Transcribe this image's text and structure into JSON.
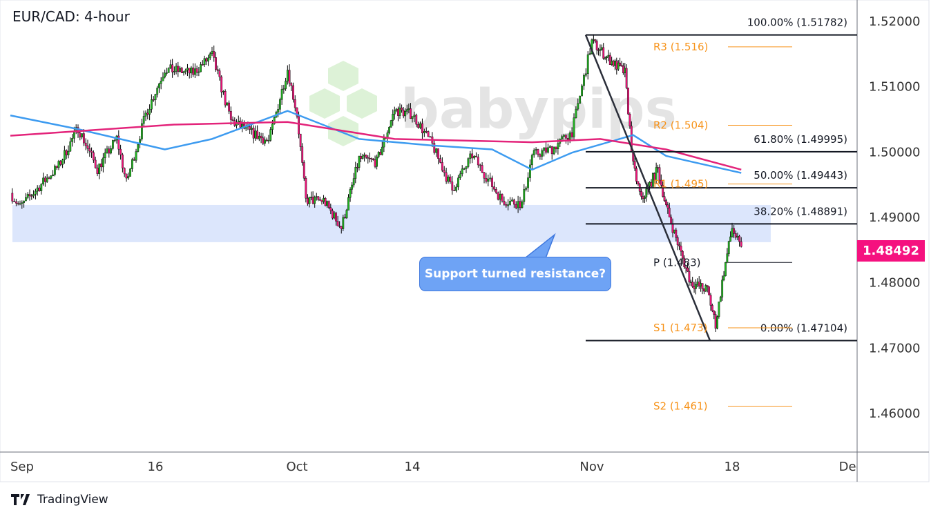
{
  "chart_data": {
    "type": "candlestick",
    "title": "EUR/CAD: 4-hour",
    "ylim": [
      1.455,
      1.522
    ],
    "y_ticks": [
      "1.52000",
      "1.51000",
      "1.50000",
      "1.49000",
      "1.48000",
      "1.47000",
      "1.46000"
    ],
    "x_ticks": [
      "Sep",
      "16",
      "Oct",
      "14",
      "Nov",
      "18",
      "Dec"
    ],
    "last_price": "1.48492",
    "price_path": [
      [
        "2024-09-01",
        1.4936
      ],
      [
        "2024-09-02",
        1.4915
      ],
      [
        "2024-09-06",
        1.4978
      ],
      [
        "2024-09-08",
        1.5036
      ],
      [
        "2024-09-10",
        1.4973
      ],
      [
        "2024-09-12",
        1.502
      ],
      [
        "2024-09-13",
        1.4952
      ],
      [
        "2024-09-15",
        1.5057
      ],
      [
        "2024-09-17",
        1.5126
      ],
      [
        "2024-09-20",
        1.512
      ],
      [
        "2024-09-22",
        1.5147
      ],
      [
        "2024-09-24",
        1.5047
      ],
      [
        "2024-09-26",
        1.503
      ],
      [
        "2024-09-28",
        1.5015
      ],
      [
        "2024-09-30",
        1.5126
      ],
      [
        "2024-10-01",
        1.5057
      ],
      [
        "2024-10-02",
        1.4925
      ],
      [
        "2024-10-04",
        1.4925
      ],
      [
        "2024-10-06",
        1.4883
      ],
      [
        "2024-10-08",
        1.4989
      ],
      [
        "2024-10-10",
        1.4984
      ],
      [
        "2024-10-12",
        1.5063
      ],
      [
        "2024-10-14",
        1.5057
      ],
      [
        "2024-10-16",
        1.501
      ],
      [
        "2024-10-18",
        1.4941
      ],
      [
        "2024-10-20",
        1.4994
      ],
      [
        "2024-10-23",
        1.4925
      ],
      [
        "2024-10-25",
        1.492
      ],
      [
        "2024-10-26",
        1.4994
      ],
      [
        "2024-10-28",
        1.5004
      ],
      [
        "2024-10-30",
        1.503
      ],
      [
        "2024-11-01",
        1.5168
      ],
      [
        "2024-11-03",
        1.5142
      ],
      [
        "2024-11-05",
        1.512
      ],
      [
        "2024-11-06",
        1.4978
      ],
      [
        "2024-11-07",
        1.4925
      ],
      [
        "2024-11-09",
        1.4973
      ],
      [
        "2024-11-10",
        1.4915
      ],
      [
        "2024-11-12",
        1.4836
      ],
      [
        "2024-11-13",
        1.4799
      ],
      [
        "2024-11-15",
        1.4788
      ],
      [
        "2024-11-16",
        1.4735
      ],
      [
        "2024-11-17",
        1.4815
      ],
      [
        "2024-11-18",
        1.4883
      ],
      [
        "2024-11-19",
        1.4849
      ]
    ],
    "moving_averages": [
      {
        "color": "#3d9bf0",
        "points": [
          [
            "2024-09-01",
            1.5055
          ],
          [
            "2024-09-08",
            1.5034
          ],
          [
            "2024-09-17",
            1.5003
          ],
          [
            "2024-09-22",
            1.5019
          ],
          [
            "2024-09-30",
            1.5062
          ],
          [
            "2024-10-08",
            1.5019
          ],
          [
            "2024-10-16",
            1.5009
          ],
          [
            "2024-10-22",
            1.5003
          ],
          [
            "2024-10-26",
            1.4972
          ],
          [
            "2024-10-30",
            1.4998
          ],
          [
            "2024-11-06",
            1.5025
          ],
          [
            "2024-11-10",
            1.4993
          ],
          [
            "2024-11-19",
            1.4967
          ]
        ]
      },
      {
        "color": "#e3237a",
        "points": [
          [
            "2024-09-01",
            1.5024
          ],
          [
            "2024-09-18",
            1.5041
          ],
          [
            "2024-09-30",
            1.5045
          ],
          [
            "2024-10-12",
            1.5019
          ],
          [
            "2024-10-26",
            1.5014
          ],
          [
            "2024-11-02",
            1.5019
          ],
          [
            "2024-11-10",
            1.5003
          ],
          [
            "2024-11-19",
            1.4972
          ]
        ]
      }
    ],
    "support_zone": {
      "from": 1.4861,
      "to": 1.4918,
      "color": "#dce6fc",
      "start": "2024-09-01",
      "end": "2024-11-22"
    },
    "fibonacci": {
      "start": "2024-11-01",
      "end": "2024-12-01",
      "levels": [
        {
          "label": "100.00% (1.51782)",
          "price": 1.51782
        },
        {
          "label": "61.80% (1.49995)",
          "price": 1.49995
        },
        {
          "label": "50.00% (1.49443)",
          "price": 1.49443
        },
        {
          "label": "38.20% (1.48891)",
          "price": 1.48891
        },
        {
          "label": "0.00% (1.47104)",
          "price": 1.47104
        }
      ]
    },
    "trendline": [
      [
        "2024-11-01",
        1.51782
      ],
      [
        "2024-11-16",
        1.47104
      ]
    ],
    "pivots": {
      "color": "#f7931a",
      "levels": [
        {
          "label": "R3 (1.516)",
          "price": 1.516
        },
        {
          "label": "R2 (1.504)",
          "price": 1.504
        },
        {
          "label": "R1 (1.495)",
          "price": 1.495
        },
        {
          "label": "P (1.483)",
          "price": 1.483,
          "color": "#131722"
        },
        {
          "label": "S1 (1.473)",
          "price": 1.473
        },
        {
          "label": "S2 (1.461)",
          "price": 1.461
        }
      ]
    },
    "annotation": "Support turned resistance?",
    "up_color": "#22b422",
    "down_color": "#f0137a"
  },
  "watermark": "babypips",
  "branding": "TradingView"
}
